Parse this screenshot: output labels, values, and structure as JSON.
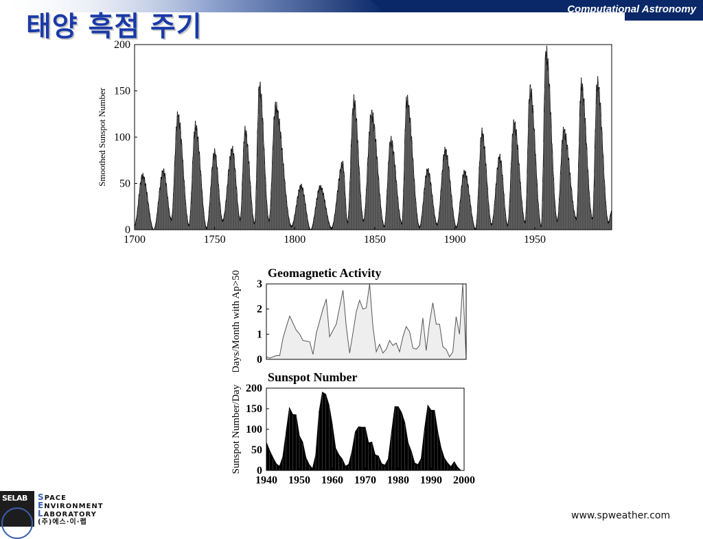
{
  "header": {
    "title": "태양 흑점 주기",
    "course": "Computational Astronomy"
  },
  "footer": {
    "logo_badge": "SELAB",
    "logo_line1_cap": "S",
    "logo_line1_rest": "PACE",
    "logo_line2_cap": "E",
    "logo_line2_rest": "NVIRONMENT",
    "logo_line3_cap": "L",
    "logo_line3_rest": "ABORATORY",
    "logo_line4": "(주)에스·이·랩",
    "site": "www.spweather.com"
  },
  "colors": {
    "title": "#1a3aa8",
    "bar": "#0a2868",
    "fill_dark": "#000000",
    "fill_light": "#eeeeee"
  },
  "chart_data": [
    {
      "type": "area",
      "title": "",
      "xlabel": "",
      "ylabel": "Smoothed Sunspot Number",
      "xlim": [
        1700,
        1998
      ],
      "ylim": [
        0,
        200
      ],
      "xticks": [
        "1700",
        "1750",
        "1800",
        "1850",
        "1900",
        "1950"
      ],
      "yticks": [
        "0",
        "50",
        "100",
        "150",
        "200"
      ],
      "peaks": [
        {
          "x": 1705,
          "y": 58
        },
        {
          "x": 1718,
          "y": 63
        },
        {
          "x": 1727,
          "y": 122
        },
        {
          "x": 1738,
          "y": 111
        },
        {
          "x": 1750,
          "y": 83
        },
        {
          "x": 1761,
          "y": 86
        },
        {
          "x": 1769,
          "y": 106
        },
        {
          "x": 1778,
          "y": 154
        },
        {
          "x": 1788,
          "y": 132
        },
        {
          "x": 1804,
          "y": 47
        },
        {
          "x": 1816,
          "y": 46
        },
        {
          "x": 1830,
          "y": 71
        },
        {
          "x": 1837,
          "y": 138
        },
        {
          "x": 1848,
          "y": 124
        },
        {
          "x": 1860,
          "y": 96
        },
        {
          "x": 1870,
          "y": 139
        },
        {
          "x": 1883,
          "y": 64
        },
        {
          "x": 1894,
          "y": 85
        },
        {
          "x": 1906,
          "y": 62
        },
        {
          "x": 1917,
          "y": 104
        },
        {
          "x": 1928,
          "y": 78
        },
        {
          "x": 1937,
          "y": 114
        },
        {
          "x": 1947,
          "y": 151
        },
        {
          "x": 1957,
          "y": 190
        },
        {
          "x": 1968,
          "y": 106
        },
        {
          "x": 1979,
          "y": 155
        },
        {
          "x": 1989,
          "y": 158
        }
      ],
      "minima": [
        {
          "x": 1700,
          "y": 5
        },
        {
          "x": 1712,
          "y": 0
        },
        {
          "x": 1723,
          "y": 11
        },
        {
          "x": 1734,
          "y": 5
        },
        {
          "x": 1745,
          "y": 2
        },
        {
          "x": 1755,
          "y": 10
        },
        {
          "x": 1766,
          "y": 11
        },
        {
          "x": 1775,
          "y": 7
        },
        {
          "x": 1784,
          "y": 10
        },
        {
          "x": 1798,
          "y": 4
        },
        {
          "x": 1810,
          "y": 0
        },
        {
          "x": 1823,
          "y": 2
        },
        {
          "x": 1833,
          "y": 8
        },
        {
          "x": 1843,
          "y": 10
        },
        {
          "x": 1856,
          "y": 4
        },
        {
          "x": 1867,
          "y": 7
        },
        {
          "x": 1878,
          "y": 3
        },
        {
          "x": 1889,
          "y": 6
        },
        {
          "x": 1901,
          "y": 3
        },
        {
          "x": 1913,
          "y": 1
        },
        {
          "x": 1923,
          "y": 6
        },
        {
          "x": 1933,
          "y": 5
        },
        {
          "x": 1944,
          "y": 8
        },
        {
          "x": 1954,
          "y": 4
        },
        {
          "x": 1964,
          "y": 10
        },
        {
          "x": 1976,
          "y": 12
        },
        {
          "x": 1986,
          "y": 12
        },
        {
          "x": 1996,
          "y": 8
        },
        {
          "x": 1998,
          "y": 20
        }
      ]
    },
    {
      "type": "area",
      "title": "Geomagnetic Activity",
      "xlabel": "",
      "ylabel": "Days/Month with Ap>50",
      "xlim": [
        1940,
        2000
      ],
      "ylim": [
        0,
        3
      ],
      "yticks": [
        "0",
        "1",
        "2",
        "3"
      ],
      "x": [
        1940,
        1941,
        1943,
        1944,
        1945,
        1946,
        1947,
        1949,
        1950,
        1951,
        1953,
        1954,
        1955,
        1957,
        1958,
        1959,
        1961,
        1963,
        1964,
        1965,
        1966,
        1967,
        1968,
        1969,
        1970,
        1971,
        1972,
        1973,
        1974,
        1975,
        1976,
        1977,
        1978,
        1979,
        1980,
        1981,
        1982,
        1983,
        1984,
        1985,
        1986,
        1987,
        1988,
        1989,
        1990,
        1991,
        1992,
        1993,
        1994,
        1995,
        1996,
        1997,
        1998,
        1999,
        2000
      ],
      "y": [
        0.1,
        0.05,
        0.15,
        0.15,
        0.85,
        1.3,
        1.72,
        1.15,
        1.0,
        0.75,
        0.7,
        0.2,
        1.05,
        2.0,
        2.4,
        0.9,
        1.4,
        2.75,
        1.3,
        0.25,
        1.05,
        1.9,
        2.35,
        2.0,
        2.05,
        3.0,
        1.3,
        0.3,
        0.6,
        0.25,
        0.4,
        0.75,
        0.55,
        0.65,
        0.3,
        0.9,
        1.3,
        1.1,
        0.45,
        0.4,
        0.55,
        1.65,
        0.35,
        1.45,
        2.25,
        1.4,
        1.4,
        0.5,
        0.4,
        0.1,
        0.3,
        1.7,
        1.0,
        3.0,
        0.1
      ]
    },
    {
      "type": "area",
      "title": "Sunspot Number",
      "xlabel": "",
      "ylabel": "Sunspot Number/Day",
      "xlim": [
        1940,
        2000
      ],
      "ylim": [
        0,
        200
      ],
      "xticks": [
        "1940",
        "1950",
        "1960",
        "1970",
        "1980",
        "1990",
        "2000"
      ],
      "yticks": [
        "0",
        "50",
        "100",
        "150",
        "200"
      ],
      "x": [
        1940,
        1941,
        1942,
        1943,
        1944,
        1945,
        1946,
        1947,
        1948,
        1949,
        1950,
        1951,
        1952,
        1953,
        1954,
        1955,
        1956,
        1957,
        1958,
        1959,
        1960,
        1961,
        1962,
        1963,
        1964,
        1965,
        1966,
        1967,
        1968,
        1969,
        1970,
        1971,
        1972,
        1973,
        1974,
        1975,
        1976,
        1977,
        1978,
        1979,
        1980,
        1981,
        1982,
        1983,
        1984,
        1985,
        1986,
        1987,
        1988,
        1989,
        1990,
        1991,
        1992,
        1993,
        1994,
        1995,
        1996,
        1997,
        1998,
        1999,
        2000
      ],
      "y": [
        68,
        48,
        31,
        16,
        10,
        33,
        93,
        152,
        136,
        135,
        84,
        69,
        31,
        14,
        4,
        38,
        142,
        190,
        185,
        159,
        112,
        54,
        38,
        28,
        10,
        15,
        47,
        94,
        106,
        105,
        105,
        67,
        69,
        38,
        35,
        16,
        13,
        28,
        93,
        155,
        155,
        141,
        116,
        67,
        46,
        18,
        14,
        29,
        100,
        158,
        146,
        146,
        94,
        55,
        30,
        18,
        9,
        21,
        8,
        0,
        0
      ]
    }
  ]
}
